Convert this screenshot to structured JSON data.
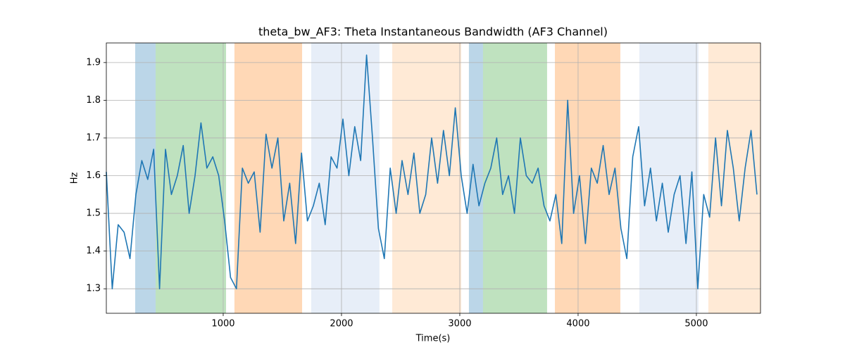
{
  "chart_data": {
    "type": "line",
    "title": "theta_bw_AF3: Theta Instantaneous Bandwidth (AF3 Channel)",
    "x_label": "Time(s)",
    "y_label": "Hz",
    "xlim": [
      12,
      5542
    ],
    "ylim": [
      1.235,
      1.952
    ],
    "xticks": [
      1000,
      2000,
      3000,
      4000,
      5000
    ],
    "yticks": [
      1.3,
      1.4,
      1.5,
      1.6,
      1.7,
      1.8,
      1.9
    ],
    "grid": true,
    "spans": [
      {
        "start": 256,
        "end": 429,
        "color": "#1f77b4"
      },
      {
        "start": 429,
        "end": 1024,
        "color": "#2ca02c"
      },
      {
        "start": 1095,
        "end": 1667,
        "color": "#ff7f0e"
      },
      {
        "start": 1744,
        "end": 2321,
        "color": "#aec7e8"
      },
      {
        "start": 2429,
        "end": 3012,
        "color": "#ffbb78"
      },
      {
        "start": 3077,
        "end": 3196,
        "color": "#1f77b4"
      },
      {
        "start": 3196,
        "end": 3738,
        "color": "#2ca02c"
      },
      {
        "start": 3804,
        "end": 4357,
        "color": "#ff7f0e"
      },
      {
        "start": 4518,
        "end": 5018,
        "color": "#aec7e8"
      },
      {
        "start": 5101,
        "end": 5542,
        "color": "#ffbb78"
      }
    ],
    "x": [
      12,
      62,
      112,
      162,
      212,
      262,
      312,
      362,
      412,
      462,
      512,
      562,
      612,
      662,
      712,
      762,
      812,
      862,
      912,
      962,
      1012,
      1062,
      1112,
      1162,
      1212,
      1262,
      1312,
      1362,
      1412,
      1462,
      1512,
      1562,
      1612,
      1662,
      1712,
      1762,
      1812,
      1862,
      1912,
      1962,
      2012,
      2062,
      2112,
      2162,
      2212,
      2262,
      2312,
      2362,
      2412,
      2462,
      2512,
      2562,
      2612,
      2662,
      2712,
      2762,
      2812,
      2862,
      2912,
      2962,
      3012,
      3062,
      3112,
      3162,
      3212,
      3262,
      3312,
      3362,
      3412,
      3462,
      3512,
      3562,
      3612,
      3662,
      3712,
      3762,
      3812,
      3862,
      3912,
      3962,
      4012,
      4062,
      4112,
      4162,
      4212,
      4262,
      4312,
      4362,
      4412,
      4462,
      4512,
      4562,
      4612,
      4662,
      4712,
      4762,
      4812,
      4862,
      4912,
      4962,
      5012,
      5062,
      5112,
      5162,
      5212,
      5262,
      5312,
      5362,
      5412,
      5462,
      5512
    ],
    "series": [
      {
        "name": "theta_bw_AF3",
        "color": "#1f77b4",
        "values": [
          1.61,
          1.3,
          1.47,
          1.45,
          1.38,
          1.55,
          1.64,
          1.59,
          1.67,
          1.3,
          1.67,
          1.55,
          1.6,
          1.68,
          1.5,
          1.6,
          1.74,
          1.62,
          1.65,
          1.6,
          1.48,
          1.33,
          1.3,
          1.62,
          1.58,
          1.61,
          1.45,
          1.71,
          1.62,
          1.7,
          1.48,
          1.58,
          1.42,
          1.66,
          1.48,
          1.52,
          1.58,
          1.47,
          1.65,
          1.62,
          1.75,
          1.6,
          1.73,
          1.64,
          1.92,
          1.7,
          1.46,
          1.38,
          1.62,
          1.5,
          1.64,
          1.55,
          1.66,
          1.5,
          1.55,
          1.7,
          1.58,
          1.72,
          1.6,
          1.78,
          1.6,
          1.5,
          1.63,
          1.52,
          1.58,
          1.62,
          1.7,
          1.55,
          1.6,
          1.5,
          1.7,
          1.6,
          1.58,
          1.62,
          1.52,
          1.48,
          1.55,
          1.42,
          1.8,
          1.5,
          1.6,
          1.42,
          1.62,
          1.58,
          1.68,
          1.55,
          1.62,
          1.46,
          1.38,
          1.65,
          1.73,
          1.52,
          1.62,
          1.48,
          1.58,
          1.45,
          1.55,
          1.6,
          1.42,
          1.61,
          1.3,
          1.55,
          1.49,
          1.7,
          1.52,
          1.72,
          1.62,
          1.48,
          1.62,
          1.72,
          1.55
        ]
      }
    ]
  }
}
